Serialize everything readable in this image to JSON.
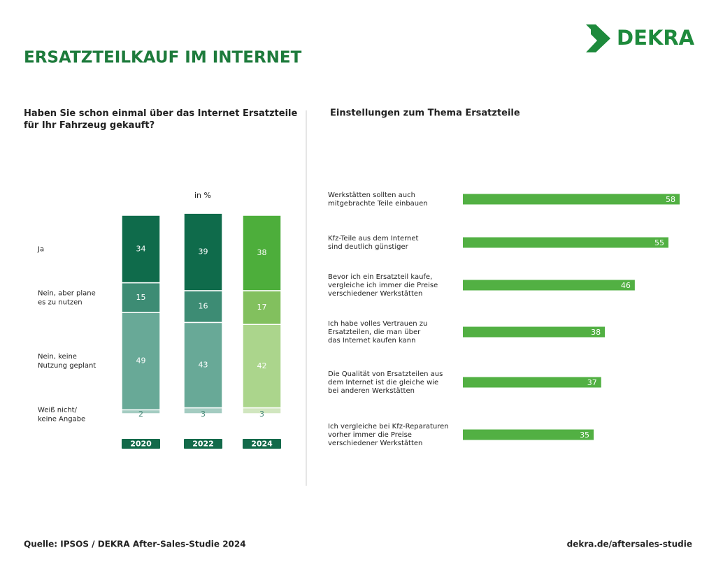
{
  "title": "ERSATZTEILKAUF IM INTERNET",
  "logo": "DEKRA",
  "chart_data": [
    {
      "type": "stacked_bar",
      "title": "Haben Sie schon einmal über das Internet Ersatzteile\nfür Ihr Fahrzeug gekauft?",
      "unit_label": "in %",
      "categories": [
        "2020",
        "2022",
        "2024"
      ],
      "series": [
        {
          "name": "Ja",
          "colors": [
            "#0f6b4b",
            "#0f6b4b",
            "#4dae3b"
          ],
          "values": [
            34,
            39,
            38
          ]
        },
        {
          "name": "Nein, aber plane\nes zu nutzen",
          "colors": [
            "#3d8c74",
            "#3d8c74",
            "#82c05e"
          ],
          "values": [
            15,
            16,
            17
          ]
        },
        {
          "name": "Nein, keine\nNutzung geplant",
          "colors": [
            "#68a997",
            "#68a997",
            "#abd58c"
          ],
          "values": [
            49,
            43,
            42
          ]
        },
        {
          "name": "Weiß nicht/\nkeine Angabe",
          "colors": [
            "#a4ccc1",
            "#a4ccc1",
            "#d1e6bf"
          ],
          "values": [
            2,
            3,
            3
          ]
        }
      ]
    },
    {
      "type": "hbar",
      "title": "Einstellungen zum Thema Ersatzteile",
      "color": "#52b043",
      "categories": [
        "Werkstätten sollten auch\nmitgebrachte Teile einbauen",
        "Kfz-Teile aus dem Internet\nsind deutlich günstiger",
        "Bevor ich ein Ersatzteil kaufe,\nvergleiche ich immer die Preise\nverschiedener Werkstätten",
        "Ich habe volles Vertrauen zu\nErsatzteilen, die man über\ndas Internet kaufen kann",
        "Die Qualität von Ersatzteilen aus\ndem Internet ist die gleiche wie\nbei anderen Werkstätten",
        "Ich vergleiche bei Kfz-Reparaturen\nvorher immer die Preise\nverschiedener Werkstätten"
      ],
      "values": [
        58,
        55,
        46,
        38,
        37,
        35
      ]
    }
  ],
  "footer": {
    "source": "Quelle: IPSOS / DEKRA After-Sales-Studie 2024",
    "url": "dekra.de/aftersales-studie"
  }
}
